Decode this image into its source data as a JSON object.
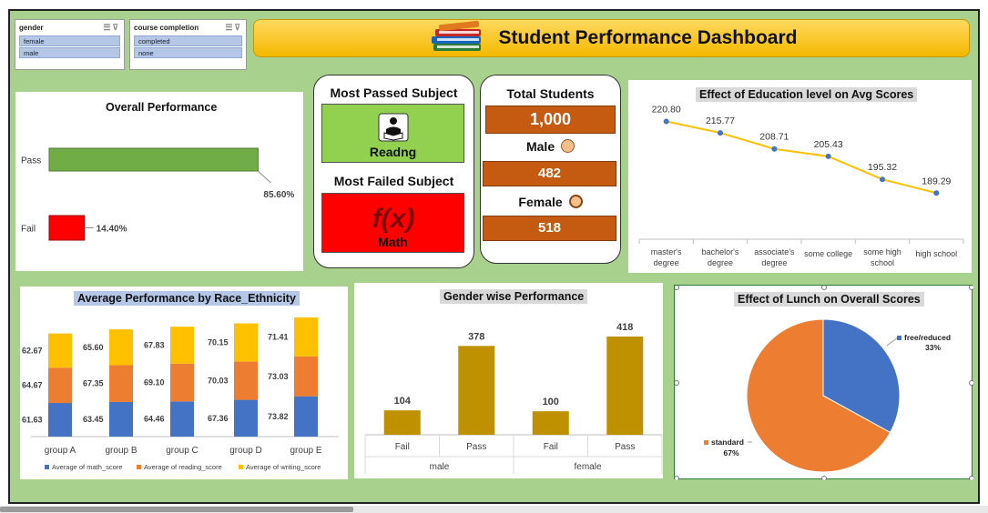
{
  "slicers": {
    "gender": {
      "title": "gender",
      "items": [
        "female",
        "male"
      ]
    },
    "course": {
      "title": "course completion",
      "items": [
        "completed",
        "none"
      ]
    }
  },
  "banner": {
    "title": "Student Performance Dashboard"
  },
  "kpi": {
    "most_passed_title": "Most Passed Subject",
    "most_passed_subject": "Readng",
    "most_failed_title": "Most Failed Subject",
    "most_failed_subject": "Math",
    "total_label": "Total Students",
    "total_value": "1,000",
    "male_label": "Male",
    "male_value": "482",
    "female_label": "Female",
    "female_value": "518"
  },
  "colors": {
    "pass": "#70ad47",
    "fail": "#ff0000",
    "math": "#4472c4",
    "reading": "#ed7d31",
    "writing": "#ffc000",
    "gender_bar": "#bf9000",
    "line": "#ffc000",
    "accent": "#c55a11"
  },
  "chart_data": [
    {
      "id": "overall",
      "type": "bar",
      "orientation": "horizontal",
      "title": "Overall Performance",
      "categories": [
        "Pass",
        "Fail"
      ],
      "values": [
        85.6,
        14.4
      ],
      "data_labels": [
        "85.60%",
        "14.40%"
      ]
    },
    {
      "id": "education",
      "type": "line",
      "title": "Effect of Education level on Avg Scores",
      "categories": [
        "master's degree",
        "bachelor's degree",
        "associate's degree",
        "some college",
        "some high school",
        "high school"
      ],
      "values": [
        220.8,
        215.77,
        208.71,
        205.43,
        195.32,
        189.29
      ],
      "data_labels": [
        "220.80",
        "215.77",
        "208.71",
        "205.43",
        "195.32",
        "189.29"
      ]
    },
    {
      "id": "race",
      "type": "bar",
      "stacked": true,
      "title": "Average Performance by Race_Ethnicity",
      "categories": [
        "group A",
        "group B",
        "group C",
        "group D",
        "group E"
      ],
      "series": [
        {
          "name": "Average of math_score",
          "values": [
            61.63,
            63.45,
            64.46,
            67.36,
            73.82
          ],
          "labels": [
            "61.63",
            "63.45",
            "64.46",
            "67.36",
            "73.82"
          ]
        },
        {
          "name": "Average of reading_score",
          "values": [
            64.67,
            67.35,
            69.1,
            70.03,
            73.03
          ],
          "labels": [
            "64.67",
            "67.35",
            "69.10",
            "70.03",
            "73.03"
          ]
        },
        {
          "name": "Average of writing_score",
          "values": [
            62.67,
            65.6,
            67.83,
            70.15,
            71.41
          ],
          "labels": [
            "62.67",
            "65.60",
            "67.83",
            "70.15",
            "71.41"
          ]
        }
      ]
    },
    {
      "id": "gender",
      "type": "bar",
      "title": "Gender wise Performance",
      "groups": [
        "male",
        "female"
      ],
      "categories": [
        "Fail",
        "Pass",
        "Fail",
        "Pass"
      ],
      "values": [
        104,
        378,
        100,
        418
      ],
      "data_labels": [
        "104",
        "378",
        "100",
        "418"
      ]
    },
    {
      "id": "lunch",
      "type": "pie",
      "title": "Effect of Lunch on Overall Scores",
      "categories": [
        "free/reduced",
        "standard"
      ],
      "values": [
        33,
        67
      ],
      "data_labels": [
        "33%",
        "67%"
      ],
      "colors": [
        "#4472c4",
        "#ed7d31"
      ]
    }
  ]
}
